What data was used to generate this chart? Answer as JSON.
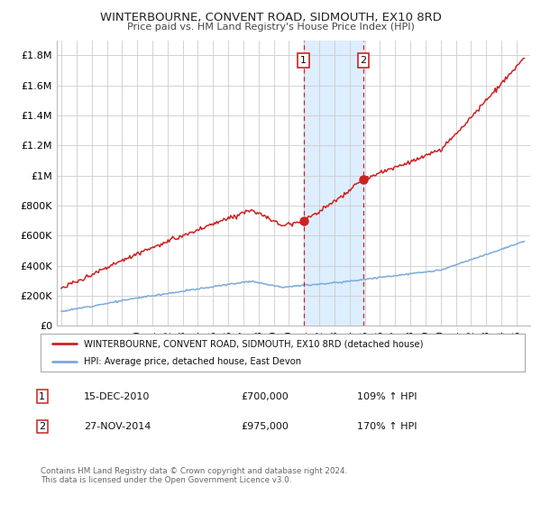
{
  "title": "WINTERBOURNE, CONVENT ROAD, SIDMOUTH, EX10 8RD",
  "subtitle": "Price paid vs. HM Land Registry's House Price Index (HPI)",
  "legend_line1": "WINTERBOURNE, CONVENT ROAD, SIDMOUTH, EX10 8RD (detached house)",
  "legend_line2": "HPI: Average price, detached house, East Devon",
  "annotation1_label": "1",
  "annotation1_date": "15-DEC-2010",
  "annotation1_price": "£700,000",
  "annotation1_hpi": "109% ↑ HPI",
  "annotation2_label": "2",
  "annotation2_date": "27-NOV-2014",
  "annotation2_price": "£975,000",
  "annotation2_hpi": "170% ↑ HPI",
  "footer": "Contains HM Land Registry data © Crown copyright and database right 2024.\nThis data is licensed under the Open Government Licence v3.0.",
  "hpi_color": "#7aaadd",
  "price_color": "#cc2222",
  "marker_color": "#cc2222",
  "vline_color": "#cc2222",
  "shade_color": "#ddeeff",
  "background_color": "#ffffff",
  "grid_color": "#cccccc",
  "ylim": [
    0,
    1900000
  ],
  "yticks": [
    0,
    200000,
    400000,
    600000,
    800000,
    1000000,
    1200000,
    1400000,
    1600000,
    1800000
  ],
  "ytick_labels": [
    "£0",
    "£200K",
    "£400K",
    "£600K",
    "£800K",
    "£1M",
    "£1.2M",
    "£1.4M",
    "£1.6M",
    "£1.8M"
  ],
  "xstart_year": 1995,
  "xend_year": 2025,
  "sale1_year": 2010.96,
  "sale2_year": 2014.91,
  "sale1_price": 700000,
  "sale2_price": 975000,
  "title_fontsize": 9.5,
  "subtitle_fontsize": 8.0
}
